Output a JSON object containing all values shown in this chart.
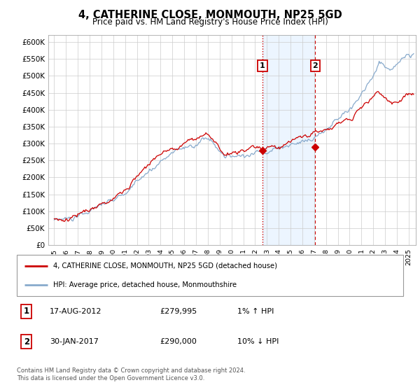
{
  "title": "4, CATHERINE CLOSE, MONMOUTH, NP25 5GD",
  "subtitle": "Price paid vs. HM Land Registry's House Price Index (HPI)",
  "legend_line1": "4, CATHERINE CLOSE, MONMOUTH, NP25 5GD (detached house)",
  "legend_line2": "HPI: Average price, detached house, Monmouthshire",
  "transaction1_date": "17-AUG-2012",
  "transaction1_price": "£279,995",
  "transaction1_hpi": "1% ↑ HPI",
  "transaction1_year": 2012.625,
  "transaction1_value": 279995,
  "transaction2_date": "30-JAN-2017",
  "transaction2_price": "£290,000",
  "transaction2_hpi": "10% ↓ HPI",
  "transaction2_year": 2017.083,
  "transaction2_value": 290000,
  "footer1": "Contains HM Land Registry data © Crown copyright and database right 2024.",
  "footer2": "This data is licensed under the Open Government Licence v3.0.",
  "ylim_max": 620000,
  "property_color": "#cc0000",
  "hpi_color": "#88aacc",
  "shade_color": "#ddeeff",
  "shade_alpha": 0.55,
  "yticks": [
    0,
    50000,
    100000,
    150000,
    200000,
    250000,
    300000,
    350000,
    400000,
    450000,
    500000,
    550000,
    600000
  ],
  "ytick_labels": [
    "£0",
    "£50K",
    "£100K",
    "£150K",
    "£200K",
    "£250K",
    "£300K",
    "£350K",
    "£400K",
    "£450K",
    "£500K",
    "£550K",
    "£600K"
  ]
}
